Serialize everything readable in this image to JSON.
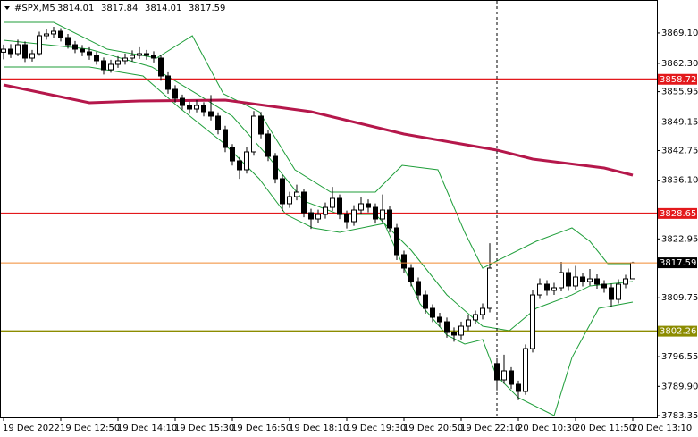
{
  "chart_data": {
    "type": "candlestick",
    "title": "#SPX,M5",
    "ylim": [
      3782.35,
      3876.5
    ],
    "yticks": [
      {
        "value": 3869.1,
        "label": "3869.10"
      },
      {
        "value": 3862.3,
        "label": "3862.30"
      },
      3855.95,
      3849.15,
      3842.75,
      {
        "value": 3836.1,
        "label": "3836.10"
      },
      3822.95,
      3809.75,
      3796.55,
      {
        "value": 3789.9,
        "label": "3789.90"
      },
      3783.35
    ],
    "xlabels": [
      "19 Dec 2022",
      "19 Dec 12:50",
      "19 Dec 14:10",
      "19 Dec 15:30",
      "19 Dec 16:50",
      "19 Dec 18:10",
      "19 Dec 19:30",
      "19 Dec 20:50",
      "19 Dec 22:10",
      "20 Dec 10:30",
      "20 Dec 11:50",
      "20 Dec 13:10"
    ],
    "ohlc": [
      [
        3864.8,
        3866.5,
        3863.2,
        3865.48
      ],
      [
        3865.48,
        3866.6,
        3863.5,
        3864.48
      ],
      [
        3864.48,
        3867.6,
        3863.9,
        3866.48
      ],
      [
        3866.48,
        3867.2,
        3862.6,
        3863.48
      ],
      [
        3863.48,
        3865.3,
        3862.7,
        3864.48
      ],
      [
        3864.48,
        3869.4,
        3864.0,
        3868.49
      ],
      [
        3868.49,
        3870.1,
        3867.6,
        3868.89
      ],
      [
        3868.89,
        3870.5,
        3868.0,
        3869.49
      ],
      [
        3869.49,
        3870.2,
        3867.2,
        3868.09
      ],
      [
        3868.09,
        3868.9,
        3865.6,
        3866.48
      ],
      [
        3866.48,
        3867.3,
        3864.6,
        3865.48
      ],
      [
        3865.48,
        3866.4,
        3863.9,
        3864.88
      ],
      [
        3864.88,
        3865.9,
        3863.1,
        3864.08
      ],
      [
        3864.08,
        3864.9,
        3862.0,
        3862.88
      ],
      [
        3862.88,
        3863.6,
        3859.8,
        3860.87
      ],
      [
        3860.87,
        3863.1,
        3860.2,
        3862.08
      ],
      [
        3862.08,
        3863.9,
        3861.3,
        3862.88
      ],
      [
        3862.88,
        3864.5,
        3862.0,
        3863.48
      ],
      [
        3863.48,
        3865.2,
        3862.7,
        3864.08
      ],
      [
        3864.08,
        3865.9,
        3863.3,
        3864.48
      ],
      [
        3864.48,
        3865.3,
        3863.1,
        3864.08
      ],
      [
        3864.08,
        3865.0,
        3862.5,
        3863.48
      ],
      [
        3863.48,
        3864.1,
        3858.4,
        3859.47
      ],
      [
        3859.47,
        3860.3,
        3855.5,
        3856.47
      ],
      [
        3856.47,
        3857.4,
        3853.5,
        3854.46
      ],
      [
        3854.46,
        3855.3,
        3851.9,
        3852.86
      ],
      [
        3852.86,
        3853.7,
        3851.0,
        3852.06
      ],
      [
        3852.06,
        3854.1,
        3851.3,
        3852.86
      ],
      [
        3852.86,
        3853.6,
        3850.4,
        3851.46
      ],
      [
        3851.46,
        3855.2,
        3849.5,
        3850.46
      ],
      [
        3850.46,
        3851.3,
        3846.4,
        3847.45
      ],
      [
        3847.45,
        3848.3,
        3842.4,
        3843.45
      ],
      [
        3843.45,
        3844.2,
        3839.4,
        3840.44
      ],
      [
        3840.44,
        3841.3,
        3836.4,
        3838.44
      ],
      [
        3838.44,
        3843.5,
        3837.6,
        3842.45
      ],
      [
        3842.45,
        3851.6,
        3841.6,
        3850.46
      ],
      [
        3850.46,
        3851.4,
        3845.5,
        3846.45
      ],
      [
        3846.45,
        3847.3,
        3840.4,
        3841.44
      ],
      [
        3841.44,
        3842.2,
        3835.4,
        3836.44
      ],
      [
        3836.44,
        3837.3,
        3829.2,
        3830.83
      ],
      [
        3830.83,
        3833.5,
        3829.9,
        3832.43
      ],
      [
        3832.43,
        3835.1,
        3831.6,
        3833.43
      ],
      [
        3833.43,
        3834.2,
        3827.8,
        3828.82
      ],
      [
        3828.82,
        3829.7,
        3825.2,
        3827.42
      ],
      [
        3827.42,
        3829.5,
        3826.5,
        3828.42
      ],
      [
        3828.42,
        3831.1,
        3827.5,
        3830.02
      ],
      [
        3830.02,
        3834.6,
        3829.2,
        3832.03
      ],
      [
        3832.03,
        3832.9,
        3827.4,
        3828.42
      ],
      [
        3828.42,
        3829.3,
        3825.3,
        3826.82
      ],
      [
        3826.82,
        3830.5,
        3825.9,
        3829.42
      ],
      [
        3829.42,
        3832.4,
        3828.5,
        3830.83
      ],
      [
        3830.83,
        3831.8,
        3828.9,
        3830.02
      ],
      [
        3830.02,
        3830.9,
        3826.4,
        3827.42
      ],
      [
        3827.42,
        3832.9,
        3826.5,
        3829.42
      ],
      [
        3829.42,
        3830.3,
        3824.4,
        3825.42
      ],
      [
        3825.42,
        3826.3,
        3818.2,
        3819.41
      ],
      [
        3819.41,
        3820.3,
        3815.2,
        3816.4
      ],
      [
        3816.4,
        3817.3,
        3812.3,
        3813.4
      ],
      [
        3813.4,
        3814.3,
        3809.2,
        3810.39
      ],
      [
        3810.39,
        3811.3,
        3806.2,
        3807.39
      ],
      [
        3807.39,
        3808.3,
        3804.3,
        3805.39
      ],
      [
        3805.39,
        3806.4,
        3803.2,
        3804.38
      ],
      [
        3804.38,
        3805.3,
        3800.8,
        3801.98
      ],
      [
        3801.98,
        3803.1,
        3799.9,
        3801.38
      ],
      [
        3801.38,
        3804.4,
        3800.4,
        3803.38
      ],
      [
        3803.38,
        3805.8,
        3802.4,
        3804.79
      ],
      [
        3804.79,
        3806.9,
        3803.8,
        3805.99
      ],
      [
        3805.99,
        3808.5,
        3804.9,
        3807.39
      ],
      [
        3807.39,
        3822.0,
        3806.5,
        3816.4
      ],
      [
        3795.0,
        3796.2,
        3789.0,
        3791.36
      ],
      [
        3791.36,
        3797.0,
        3790.5,
        3793.37
      ],
      [
        3793.37,
        3794.2,
        3789.3,
        3790.36
      ],
      [
        3790.36,
        3791.2,
        3786.8,
        3788.76
      ],
      [
        3788.76,
        3799.3,
        3788.0,
        3798.37
      ],
      [
        3798.37,
        3811.5,
        3797.5,
        3810.39
      ],
      [
        3810.39,
        3814.1,
        3809.5,
        3812.8
      ],
      [
        3812.8,
        3813.7,
        3810.3,
        3811.4
      ],
      [
        3811.4,
        3813.1,
        3810.4,
        3812.0
      ],
      [
        3812.0,
        3817.8,
        3811.2,
        3815.4
      ],
      [
        3815.4,
        3816.3,
        3811.3,
        3812.4
      ],
      [
        3812.4,
        3816.9,
        3811.5,
        3814.4
      ],
      [
        3814.4,
        3815.3,
        3812.3,
        3813.4
      ],
      [
        3813.4,
        3816.2,
        3812.5,
        3814.0
      ],
      [
        3814.0,
        3815.0,
        3811.8,
        3812.8
      ],
      [
        3812.8,
        3813.7,
        3810.9,
        3812.0
      ],
      [
        3812.0,
        3812.9,
        3807.8,
        3809.39
      ],
      [
        3809.39,
        3813.9,
        3808.5,
        3812.8
      ],
      [
        3812.8,
        3814.9,
        3811.9,
        3814.0
      ],
      [
        3814.01,
        3817.84,
        3814.01,
        3817.59
      ]
    ],
    "indicators": [
      {
        "color": "#1f9e3a",
        "width": 1,
        "x": [
          0,
          7,
          14.5,
          21.4,
          26.4,
          30.75,
          35.75,
          40.75,
          45.75,
          52,
          55.75,
          60.75,
          64.5,
          67,
          69.5,
          74.5,
          79.5,
          82,
          84.5,
          88
        ],
        "values": [
          3871.49,
          3871.49,
          3865.48,
          3863.48,
          3868.49,
          3855.47,
          3851.46,
          3838.44,
          3833.43,
          3833.43,
          3839.44,
          3838.44,
          3824.42,
          3816.4,
          3818.41,
          3822.41,
          3825.42,
          3822.41,
          3817.41,
          3817.41
        ]
      },
      {
        "color": "#1f9e3a",
        "width": 1,
        "x": [
          0,
          12,
          20.75,
          27,
          32,
          37,
          42,
          47,
          52,
          57,
          62,
          67,
          70.75,
          74.5,
          79.5,
          82,
          88
        ],
        "values": [
          3867.49,
          3865.48,
          3861.48,
          3855.47,
          3850.46,
          3841.44,
          3831.43,
          3828.42,
          3828.42,
          3820.41,
          3810.4,
          3803.38,
          3802.38,
          3807.39,
          3810.4,
          3812.4,
          3813.4
        ]
      },
      {
        "color": "#1f9e3a",
        "width": 1,
        "x": [
          0,
          12,
          19.5,
          24.5,
          30.75,
          35.75,
          39.5,
          43.25,
          47,
          53.25,
          58.25,
          62,
          64.5,
          67,
          68.9,
          72,
          77,
          79.5,
          83.25,
          88
        ],
        "values": [
          3861.48,
          3861.48,
          3859.47,
          3852.46,
          3844.45,
          3836.44,
          3828.42,
          3825.42,
          3824.42,
          3826.42,
          3808.39,
          3801.38,
          3799.38,
          3800.38,
          3792.37,
          3787.36,
          3783.35,
          3796.37,
          3807.39,
          3808.79
        ]
      },
      {
        "color": "#b5174b",
        "width": 3,
        "x": [
          0,
          12,
          19,
          31,
          43,
          56,
          69,
          74,
          84,
          88
        ],
        "values": [
          3857.47,
          3853.46,
          3853.86,
          3854.06,
          3851.46,
          3846.45,
          3842.85,
          3840.84,
          3838.84,
          3837.24
        ]
      }
    ],
    "levels": [
      {
        "value": 3858.72,
        "color": "#e3191c"
      },
      {
        "value": 3828.65,
        "color": "#e3191c"
      },
      {
        "value": 3802.26,
        "color": "#8c8c00"
      }
    ],
    "price_line_color": "#f08a30"
  }
}
